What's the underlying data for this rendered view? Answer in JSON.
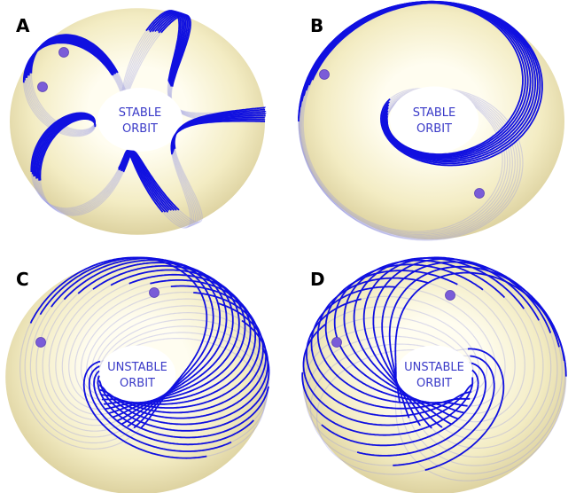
{
  "panels": [
    {
      "label": "A",
      "orbit_label": [
        "STABLE",
        "ORBIT"
      ]
    },
    {
      "label": "B",
      "orbit_label": [
        "STABLE",
        "ORBIT"
      ]
    },
    {
      "label": "C",
      "orbit_label": [
        "UNSTABLE",
        "ORBIT"
      ]
    },
    {
      "label": "D",
      "orbit_label": [
        "UNSTABLE",
        "ORBIT"
      ]
    }
  ]
}
